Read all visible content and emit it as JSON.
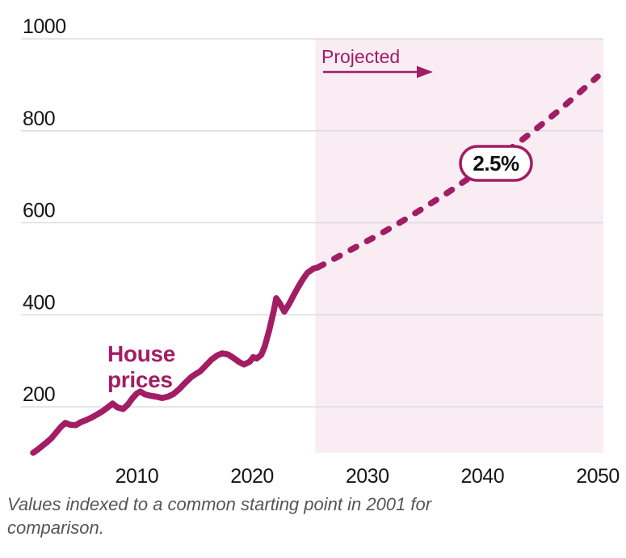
{
  "colors": {
    "accent": "#a21d63",
    "projection_fill": "#f9edf3",
    "gridline": "#d8d8d8",
    "axis_text": "#161616",
    "caption_text": "#555555",
    "badge_text": "#111111",
    "background": "#ffffff"
  },
  "caption_lines": [
    "Values indexed to a common starting point in 2001 for",
    "comparison."
  ],
  "chart_data": {
    "type": "line",
    "title": "",
    "xlabel": "",
    "ylabel": "",
    "xlim": [
      2001,
      2050
    ],
    "ylim": [
      100,
      1000
    ],
    "x_ticks": [
      2010,
      2020,
      2030,
      2040,
      2050
    ],
    "y_ticks": [
      200,
      400,
      600,
      800,
      1000
    ],
    "grid": "horizontal",
    "legend": "none",
    "projection": {
      "start_year": 2025.5,
      "annual_growth": "2.5%"
    },
    "series": [
      {
        "name": "House prices (historical)",
        "style": "solid",
        "points": [
          [
            2001.0,
            100
          ],
          [
            2001.4,
            107
          ],
          [
            2001.8,
            115
          ],
          [
            2002.2,
            123
          ],
          [
            2002.6,
            132
          ],
          [
            2003.0,
            144
          ],
          [
            2003.4,
            156
          ],
          [
            2003.8,
            165
          ],
          [
            2004.2,
            161
          ],
          [
            2004.7,
            160
          ],
          [
            2005.1,
            166
          ],
          [
            2005.6,
            171
          ],
          [
            2006.1,
            177
          ],
          [
            2006.6,
            184
          ],
          [
            2007.0,
            190
          ],
          [
            2007.5,
            199
          ],
          [
            2007.9,
            207
          ],
          [
            2008.3,
            199
          ],
          [
            2008.8,
            195
          ],
          [
            2009.2,
            204
          ],
          [
            2009.6,
            218
          ],
          [
            2010.0,
            229
          ],
          [
            2010.3,
            233
          ],
          [
            2010.7,
            227
          ],
          [
            2011.2,
            224
          ],
          [
            2011.7,
            222
          ],
          [
            2012.2,
            219
          ],
          [
            2012.7,
            222
          ],
          [
            2013.2,
            228
          ],
          [
            2013.7,
            239
          ],
          [
            2014.2,
            252
          ],
          [
            2014.7,
            264
          ],
          [
            2015.1,
            271
          ],
          [
            2015.5,
            277
          ],
          [
            2016.0,
            290
          ],
          [
            2016.5,
            303
          ],
          [
            2017.0,
            312
          ],
          [
            2017.4,
            316
          ],
          [
            2017.9,
            314
          ],
          [
            2018.4,
            306
          ],
          [
            2018.9,
            297
          ],
          [
            2019.3,
            292
          ],
          [
            2019.8,
            298
          ],
          [
            2020.1,
            308
          ],
          [
            2020.4,
            305
          ],
          [
            2020.8,
            313
          ],
          [
            2021.1,
            331
          ],
          [
            2021.5,
            367
          ],
          [
            2021.9,
            410
          ],
          [
            2022.1,
            436
          ],
          [
            2022.4,
            425
          ],
          [
            2022.8,
            407
          ],
          [
            2023.2,
            423
          ],
          [
            2023.6,
            442
          ],
          [
            2024.0,
            460
          ],
          [
            2024.4,
            477
          ],
          [
            2024.8,
            491
          ],
          [
            2025.3,
            500
          ],
          [
            2025.7,
            503
          ]
        ]
      },
      {
        "name": "House prices (projected at 2.5% annual growth)",
        "style": "dashed",
        "points": [
          [
            2025.7,
            503
          ],
          [
            2027,
            520
          ],
          [
            2029,
            547
          ],
          [
            2031,
            574
          ],
          [
            2033,
            603
          ],
          [
            2035,
            634
          ],
          [
            2037,
            666
          ],
          [
            2039,
            700
          ],
          [
            2041,
            735
          ],
          [
            2043,
            772
          ],
          [
            2045,
            811
          ],
          [
            2047,
            852
          ],
          [
            2049,
            896
          ],
          [
            2050,
            918
          ]
        ]
      }
    ],
    "annotations": {
      "series_label_lines": [
        "House",
        "prices"
      ],
      "projected_label": "Projected",
      "growth_label": "2.5%"
    }
  }
}
